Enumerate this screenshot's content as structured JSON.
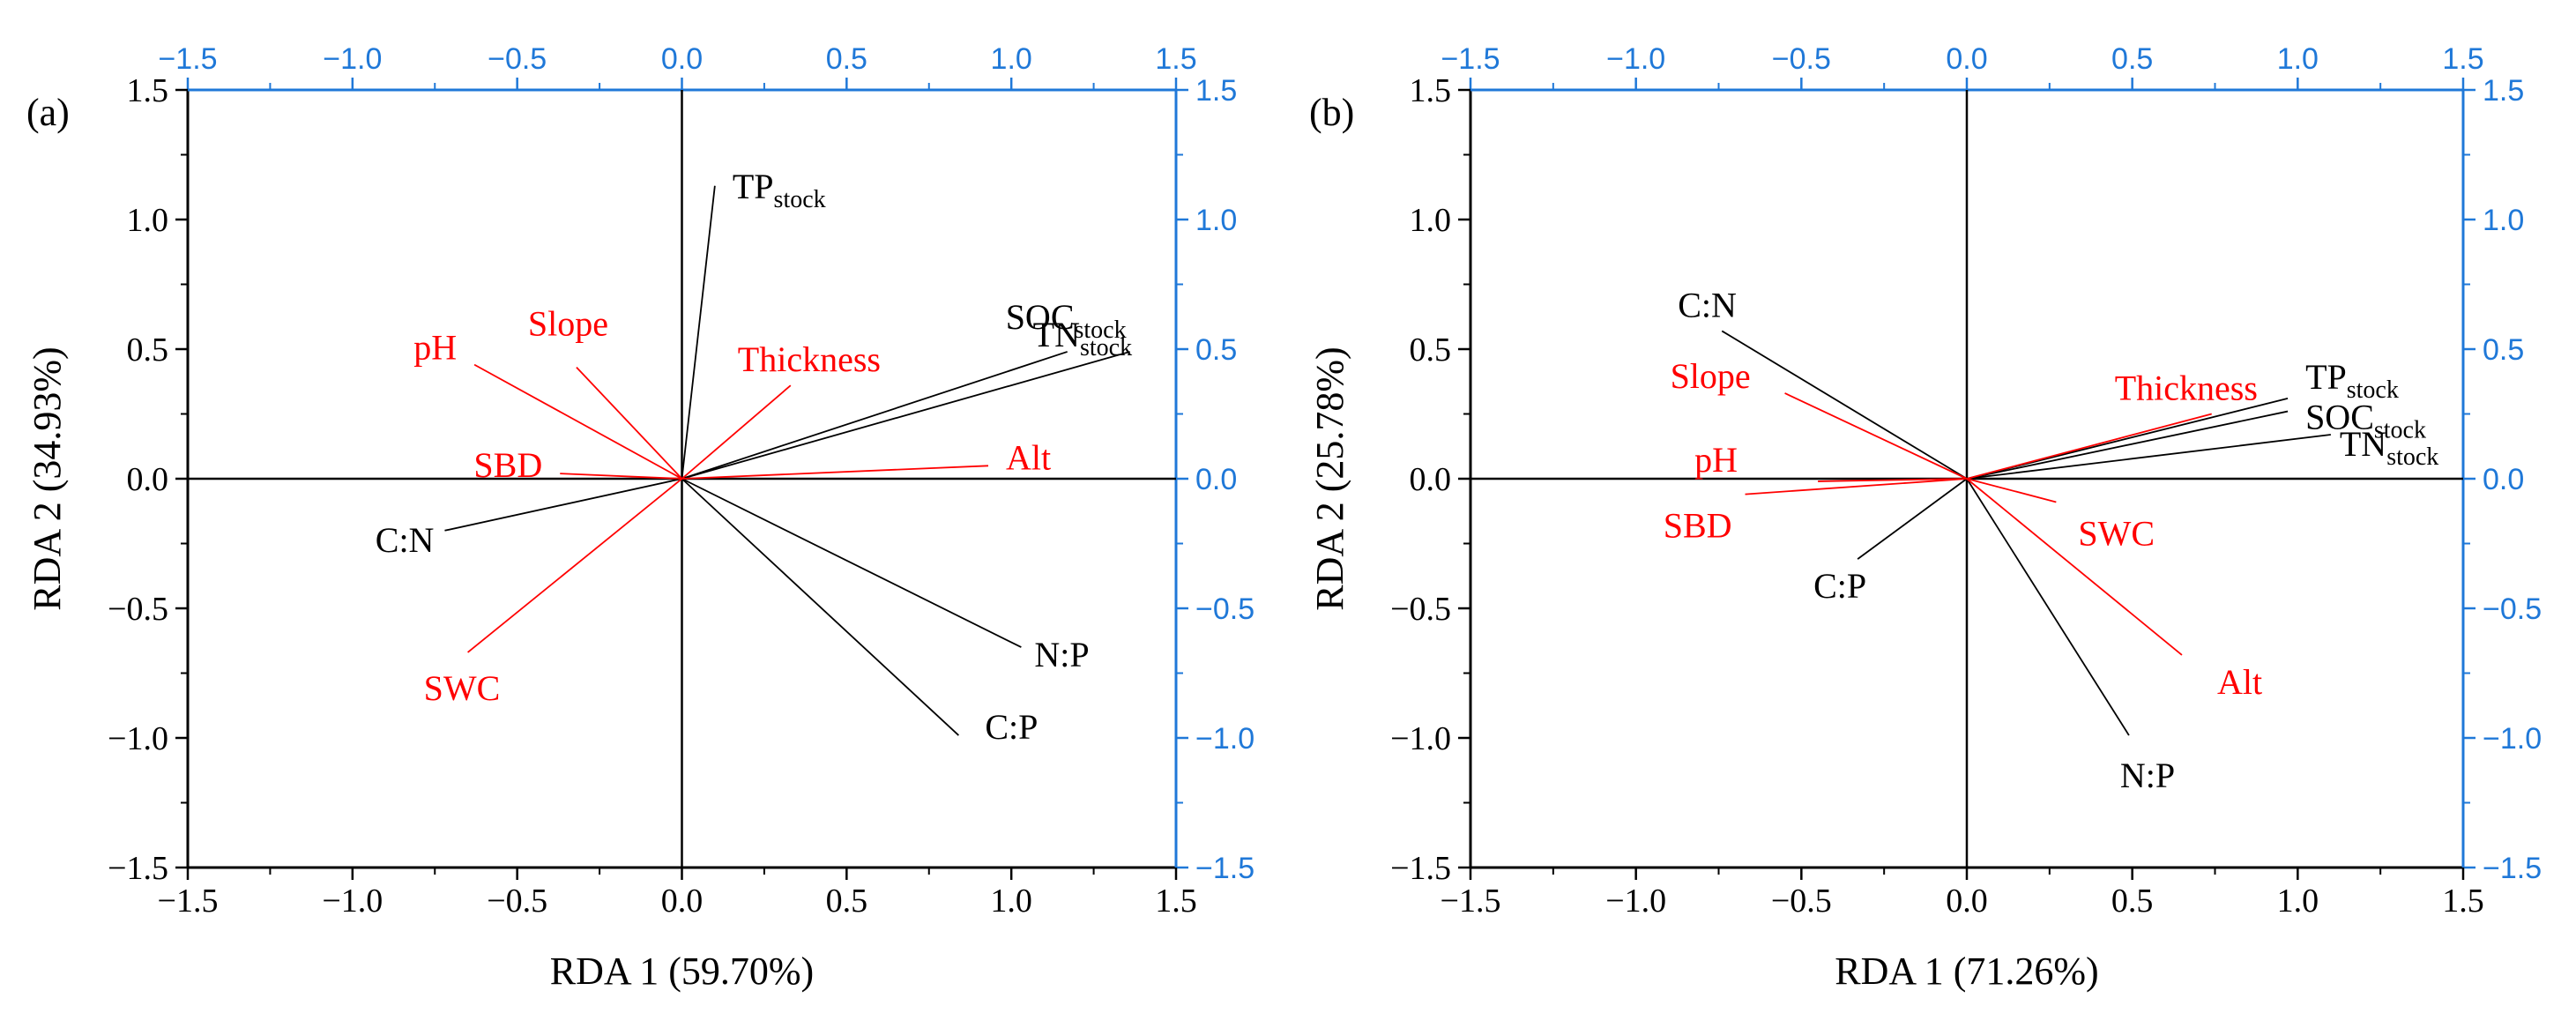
{
  "chart_data": [
    {
      "type": "biplot",
      "panel_label": "(a)",
      "xlabel": "RDA 1 (59.70%)",
      "ylabel": "RDA 2 (34.93%)",
      "xlim": [
        -1.5,
        1.5
      ],
      "ylim": [
        -1.5,
        1.5
      ],
      "ticks": [
        -1.5,
        -1.0,
        -0.5,
        0.0,
        0.5,
        1.0,
        1.5
      ],
      "tick_labels": [
        "−1.5",
        "−1.0",
        "−0.5",
        "0.0",
        "0.5",
        "1.0",
        "1.5"
      ],
      "top_axis_color": "#1f78d8",
      "axis_color": "#000000",
      "vectors": [
        {
          "name": "TP",
          "sub": "stock",
          "color": "#000000",
          "x": 0.1,
          "y": 1.13
        },
        {
          "name": "SOC",
          "sub": "stock",
          "color": "#000000",
          "x": 1.17,
          "y": 0.49
        },
        {
          "name": "TN",
          "sub": "stock",
          "color": "#000000",
          "x": 1.36,
          "y": 0.49
        },
        {
          "name": "N:P",
          "sub": "",
          "color": "#000000",
          "x": 1.03,
          "y": -0.65
        },
        {
          "name": "C:P",
          "sub": "",
          "color": "#000000",
          "x": 0.84,
          "y": -0.99
        },
        {
          "name": "C:N",
          "sub": "",
          "color": "#000000",
          "x": -0.72,
          "y": -0.2
        },
        {
          "name": "pH",
          "sub": "",
          "color": "#ff0000",
          "x": -0.63,
          "y": 0.44
        },
        {
          "name": "Slope",
          "sub": "",
          "color": "#ff0000",
          "x": -0.32,
          "y": 0.43
        },
        {
          "name": "Thickness",
          "sub": "",
          "color": "#ff0000",
          "x": 0.33,
          "y": 0.36
        },
        {
          "name": "SBD",
          "sub": "",
          "color": "#ff0000",
          "x": -0.37,
          "y": 0.02
        },
        {
          "name": "Alt",
          "sub": "",
          "color": "#ff0000",
          "x": 0.93,
          "y": 0.05
        },
        {
          "name": "SWC",
          "sub": "",
          "color": "#ff0000",
          "x": -0.65,
          "y": -0.67
        }
      ]
    },
    {
      "type": "biplot",
      "panel_label": "(b)",
      "xlabel": "RDA 1 (71.26%)",
      "ylabel": "RDA 2 (25.78%)",
      "xlim": [
        -1.5,
        1.5
      ],
      "ylim": [
        -1.5,
        1.5
      ],
      "ticks": [
        -1.5,
        -1.0,
        -0.5,
        0.0,
        0.5,
        1.0,
        1.5
      ],
      "tick_labels": [
        "−1.5",
        "−1.0",
        "−0.5",
        "0.0",
        "0.5",
        "1.0",
        "1.5"
      ],
      "top_axis_color": "#1f78d8",
      "axis_color": "#000000",
      "vectors": [
        {
          "name": "C:N",
          "sub": "",
          "color": "#000000",
          "x": -0.74,
          "y": 0.57
        },
        {
          "name": "C:P",
          "sub": "",
          "color": "#000000",
          "x": -0.33,
          "y": -0.31
        },
        {
          "name": "N:P",
          "sub": "",
          "color": "#000000",
          "x": 0.49,
          "y": -0.99
        },
        {
          "name": "TP",
          "sub": "stock",
          "color": "#000000",
          "x": 0.97,
          "y": 0.31
        },
        {
          "name": "SOC",
          "sub": "stock",
          "color": "#000000",
          "x": 0.97,
          "y": 0.26
        },
        {
          "name": "TN",
          "sub": "stock",
          "color": "#000000",
          "x": 1.1,
          "y": 0.17
        },
        {
          "name": "Thickness",
          "sub": "",
          "color": "#ff0000",
          "x": 0.74,
          "y": 0.25
        },
        {
          "name": "Slope",
          "sub": "",
          "color": "#ff0000",
          "x": -0.55,
          "y": 0.33
        },
        {
          "name": "pH",
          "sub": "",
          "color": "#ff0000",
          "x": -0.45,
          "y": -0.01
        },
        {
          "name": "SBD",
          "sub": "",
          "color": "#ff0000",
          "x": -0.67,
          "y": -0.06
        },
        {
          "name": "SWC",
          "sub": "",
          "color": "#ff0000",
          "x": 0.27,
          "y": -0.09
        },
        {
          "name": "Alt",
          "sub": "",
          "color": "#ff0000",
          "x": 0.65,
          "y": -0.68
        }
      ]
    }
  ]
}
